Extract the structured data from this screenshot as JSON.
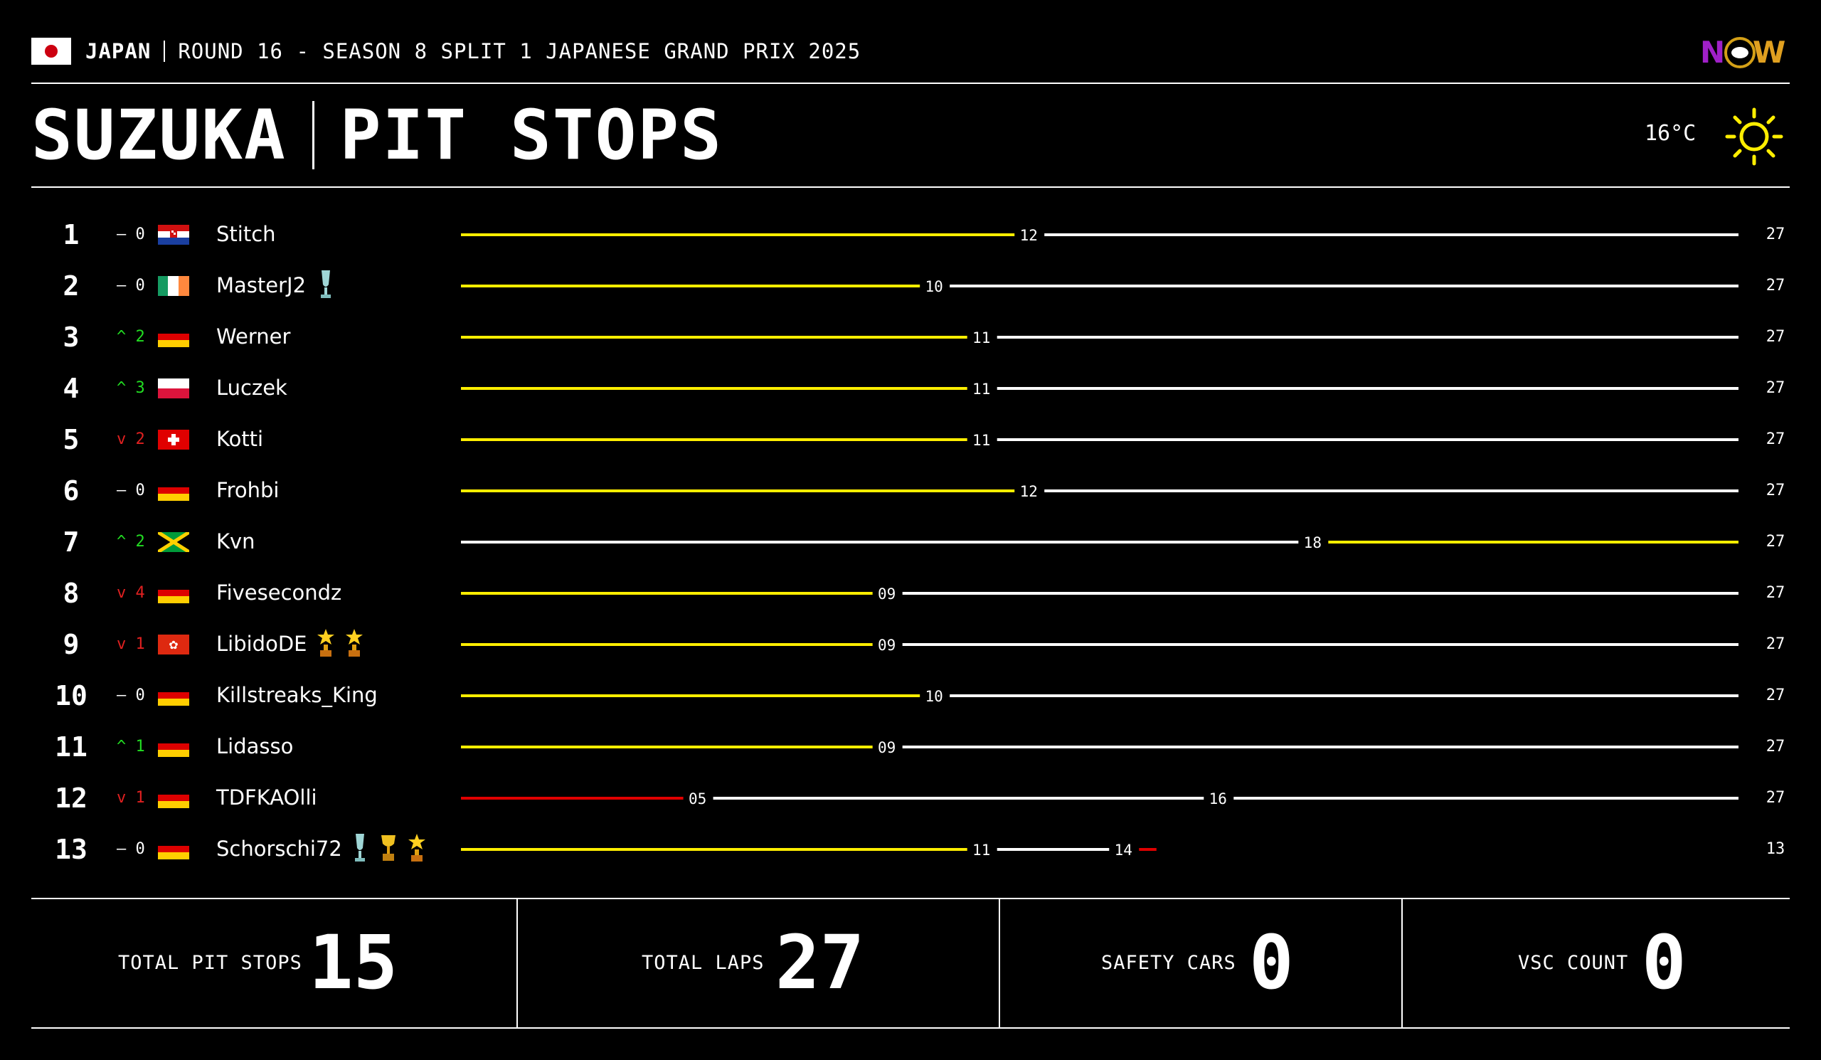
{
  "header": {
    "country": "JAPAN",
    "round_text": "ROUND 16 - SEASON 8 SPLIT 1 JAPANESE GRAND PRIX 2025",
    "logo_text": "NOW",
    "title_left": "SUZUKA",
    "title_right": "PIT STOPS",
    "temperature": "16°C",
    "weather_icon": "sun-icon"
  },
  "colors": {
    "stint_yellow": "#ffee00",
    "stint_white": "#ffffff",
    "stint_red": "#e00000",
    "position_up": "#22dd22",
    "position_down": "#e02020"
  },
  "drivers": [
    {
      "pos": "1",
      "change": "– 0",
      "dir": "same",
      "flag": "croatia-flag",
      "name": "Stitch",
      "trophies": [],
      "stints": [
        {
          "end": 12,
          "color": "yellow",
          "label": "12"
        },
        {
          "end": 27,
          "color": "white",
          "label": "27"
        }
      ]
    },
    {
      "pos": "2",
      "change": "– 0",
      "dir": "same",
      "flag": "ireland-flag",
      "name": "MasterJ2",
      "trophies": [
        "cup-icon"
      ],
      "stints": [
        {
          "end": 10,
          "color": "yellow",
          "label": "10"
        },
        {
          "end": 27,
          "color": "white",
          "label": "27"
        }
      ]
    },
    {
      "pos": "3",
      "change": "^ 2",
      "dir": "up",
      "flag": "germany-flag",
      "name": "Werner",
      "trophies": [],
      "stints": [
        {
          "end": 11,
          "color": "yellow",
          "label": "11"
        },
        {
          "end": 27,
          "color": "white",
          "label": "27"
        }
      ]
    },
    {
      "pos": "4",
      "change": "^ 3",
      "dir": "up",
      "flag": "poland-flag",
      "name": "Luczek",
      "trophies": [],
      "stints": [
        {
          "end": 11,
          "color": "yellow",
          "label": "11"
        },
        {
          "end": 27,
          "color": "white",
          "label": "27"
        }
      ]
    },
    {
      "pos": "5",
      "change": "v 2",
      "dir": "down",
      "flag": "switzerland-flag",
      "name": "Kotti",
      "trophies": [],
      "stints": [
        {
          "end": 11,
          "color": "yellow",
          "label": "11"
        },
        {
          "end": 27,
          "color": "white",
          "label": "27"
        }
      ]
    },
    {
      "pos": "6",
      "change": "– 0",
      "dir": "same",
      "flag": "germany-flag",
      "name": "Frohbi",
      "trophies": [],
      "stints": [
        {
          "end": 12,
          "color": "yellow",
          "label": "12"
        },
        {
          "end": 27,
          "color": "white",
          "label": "27"
        }
      ]
    },
    {
      "pos": "7",
      "change": "^ 2",
      "dir": "up",
      "flag": "jamaica-flag",
      "name": "Kvn",
      "trophies": [],
      "stints": [
        {
          "end": 18,
          "color": "white",
          "label": "18"
        },
        {
          "end": 27,
          "color": "yellow",
          "label": "27"
        }
      ]
    },
    {
      "pos": "8",
      "change": "v 4",
      "dir": "down",
      "flag": "germany-flag",
      "name": "Fivesecondz",
      "trophies": [],
      "stints": [
        {
          "end": 9,
          "color": "yellow",
          "label": "09"
        },
        {
          "end": 27,
          "color": "white",
          "label": "27"
        }
      ]
    },
    {
      "pos": "9",
      "change": "v 1",
      "dir": "down",
      "flag": "hongkong-flag",
      "name": "LibidoDE",
      "trophies": [
        "star-trophy-icon",
        "star-trophy-icon"
      ],
      "stints": [
        {
          "end": 9,
          "color": "yellow",
          "label": "09"
        },
        {
          "end": 27,
          "color": "white",
          "label": "27"
        }
      ]
    },
    {
      "pos": "10",
      "change": "– 0",
      "dir": "same",
      "flag": "germany-flag",
      "name": "Killstreaks_King",
      "trophies": [],
      "stints": [
        {
          "end": 10,
          "color": "yellow",
          "label": "10"
        },
        {
          "end": 27,
          "color": "white",
          "label": "27"
        }
      ]
    },
    {
      "pos": "11",
      "change": "^ 1",
      "dir": "up",
      "flag": "germany-flag",
      "name": "Lidasso",
      "trophies": [],
      "stints": [
        {
          "end": 9,
          "color": "yellow",
          "label": "09"
        },
        {
          "end": 27,
          "color": "white",
          "label": "27"
        }
      ]
    },
    {
      "pos": "12",
      "change": "v 1",
      "dir": "down",
      "flag": "germany-flag",
      "name": "TDFKAOlli",
      "trophies": [],
      "stints": [
        {
          "end": 5,
          "color": "red",
          "label": "05"
        },
        {
          "end": 16,
          "color": "white",
          "label": "16"
        },
        {
          "end": 27,
          "color": "white",
          "label": "27"
        }
      ]
    },
    {
      "pos": "13",
      "change": "– 0",
      "dir": "same",
      "flag": "germany-flag",
      "name": "Schorschi72",
      "trophies": [
        "cup-icon",
        "gold-trophy-icon",
        "star-trophy-icon"
      ],
      "stints": [
        {
          "end": 11,
          "color": "yellow",
          "label": "11"
        },
        {
          "end": 14,
          "color": "white",
          "label": "14"
        },
        {
          "end": 15,
          "color": "red",
          "label": ""
        }
      ],
      "total_label": "13"
    }
  ],
  "race_laps": 27,
  "stats": [
    {
      "label": "TOTAL PIT STOPS",
      "value": "15"
    },
    {
      "label": "TOTAL LAPS",
      "value": "27"
    },
    {
      "label": "SAFETY CARS",
      "value": "0"
    },
    {
      "label": "VSC COUNT",
      "value": "0"
    }
  ]
}
